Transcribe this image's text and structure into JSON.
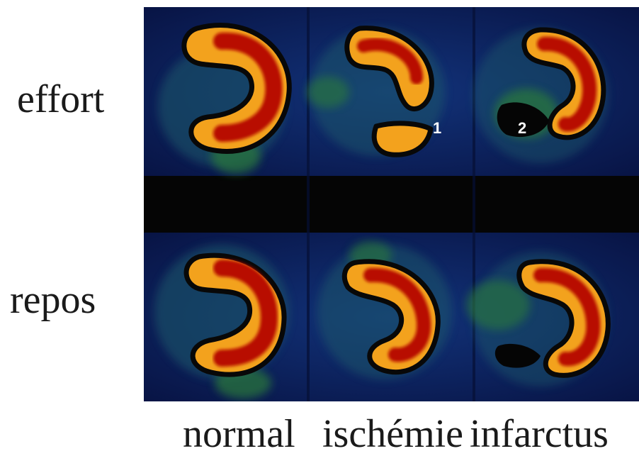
{
  "rows": {
    "effort": "effort",
    "repos": "repos"
  },
  "columns": {
    "normal": "normal",
    "ischemie": "ischémie",
    "infarctus": "infarctus"
  },
  "defect_markers": {
    "marker_1": "1",
    "marker_2": "2"
  },
  "colors": {
    "background": "#0a1a52",
    "perfusion_high": "#b80d05",
    "perfusion_mid": "#f3a21d",
    "perfusion_low": "#2d7a3a",
    "separator": "#050505"
  }
}
